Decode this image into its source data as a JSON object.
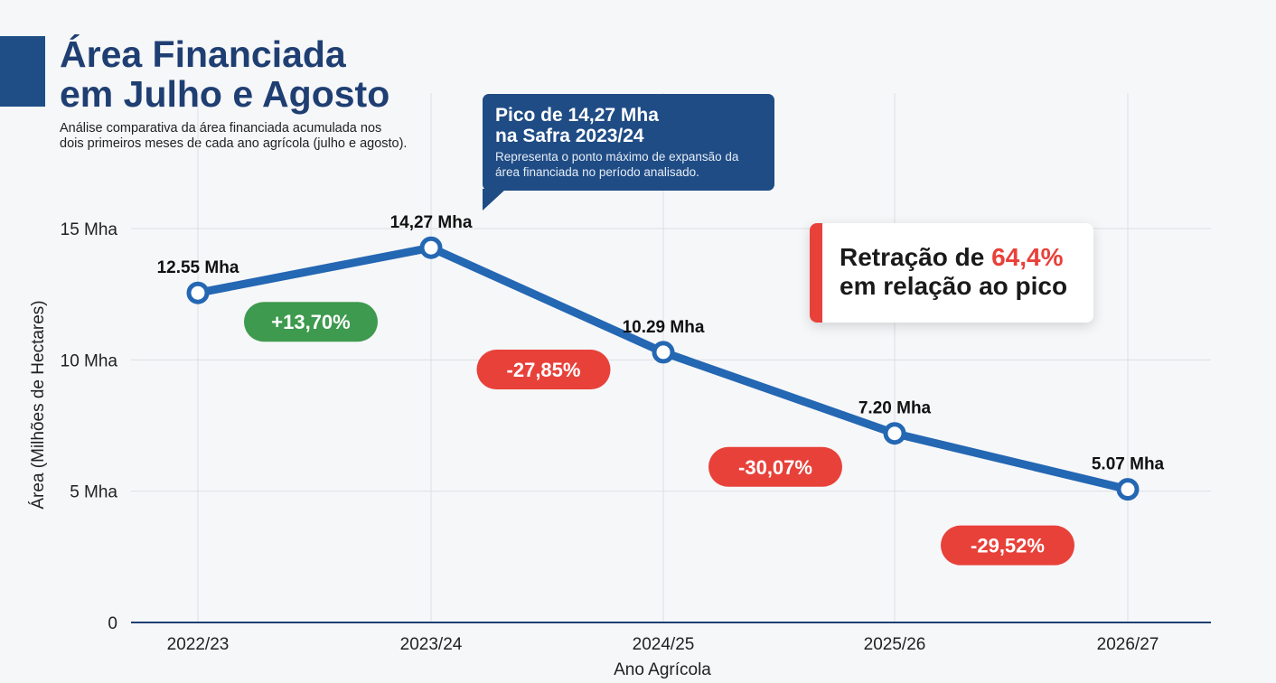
{
  "header": {
    "title_line1": "Área Financiada",
    "title_line2": "em Julho e Agosto",
    "subtitle": "Análise comparativa da área financiada acumulada nos dois primeiros meses de cada ano agrícola (julho e agosto)."
  },
  "callout": {
    "title_line1": "Pico de 14,27 Mha",
    "title_line2": "na Safra 2023/24",
    "text": "Representa o ponto máximo de expansão da área financiada no período analisado."
  },
  "summary": {
    "line1_prefix": "Retração de ",
    "line1_highlight": "64,4%",
    "line2": "em relação ao pico"
  },
  "colors": {
    "line": "#2467b3",
    "positive": "#3e9a4e",
    "negative": "#e8413a",
    "title": "#1f3f73",
    "callout": "#1f4c85"
  },
  "chart_data": {
    "type": "line",
    "xlabel": "Ano Agrícola",
    "ylabel": "Área (Milhões de Hectares)",
    "categories": [
      "2022/23",
      "2023/24",
      "2024/25",
      "2025/26",
      "2026/27"
    ],
    "values": [
      12.55,
      14.27,
      10.29,
      7.2,
      5.07
    ],
    "point_labels": [
      "12.55 Mha",
      "14,27 Mha",
      "10.29 Mha",
      "7.20 Mha",
      "5.07 Mha"
    ],
    "ylim": [
      0,
      15
    ],
    "yticks": [
      0,
      5,
      10,
      15
    ],
    "ytick_labels": [
      "0",
      "5 Mha",
      "10 Mha",
      "15 Mha"
    ],
    "grid": true,
    "changes": [
      {
        "label": "+13,70%",
        "direction": "up"
      },
      {
        "label": "-27,85%",
        "direction": "down"
      },
      {
        "label": "-30,07%",
        "direction": "down"
      },
      {
        "label": "-29,52%",
        "direction": "down"
      }
    ]
  }
}
